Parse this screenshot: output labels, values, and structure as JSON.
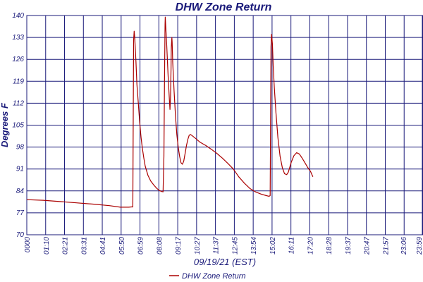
{
  "chart_data": {
    "type": "line",
    "title": "DHW Zone Return",
    "xlabel": "09/19/21 (EST)",
    "ylabel": "Degrees F",
    "ylim": [
      70,
      140
    ],
    "yticks": [
      70,
      77,
      84,
      91,
      98,
      105,
      112,
      119,
      126,
      133,
      140
    ],
    "xlim": [
      0,
      1439
    ],
    "xtick_labels": [
      "0000",
      "01:10",
      "02:21",
      "03:31",
      "04:41",
      "05:50",
      "06:59",
      "08:08",
      "09:17",
      "10:27",
      "11:37",
      "12:45",
      "13:54",
      "15:02",
      "16:11",
      "17:20",
      "18:28",
      "19:37",
      "20:47",
      "21:57",
      "23:06",
      "23:59"
    ],
    "grid": true,
    "legend_position": "bottom",
    "colors": {
      "series": "#aa0000",
      "grid": "#1a1a7a",
      "text": "#1a1a7a"
    },
    "series": [
      {
        "name": "DHW Zone Return",
        "points": [
          [
            0,
            81.2
          ],
          [
            60,
            81.0
          ],
          [
            120,
            80.6
          ],
          [
            180,
            80.2
          ],
          [
            240,
            79.8
          ],
          [
            300,
            79.3
          ],
          [
            340,
            78.8
          ],
          [
            370,
            78.8
          ],
          [
            380,
            78.9
          ],
          [
            385,
            78.9
          ],
          [
            388,
            132
          ],
          [
            390,
            135
          ],
          [
            392,
            133
          ],
          [
            396,
            126
          ],
          [
            400,
            118
          ],
          [
            405,
            112
          ],
          [
            410,
            106
          ],
          [
            415,
            101
          ],
          [
            420,
            97.5
          ],
          [
            425,
            94.5
          ],
          [
            430,
            92
          ],
          [
            440,
            89
          ],
          [
            450,
            87.2
          ],
          [
            460,
            86
          ],
          [
            470,
            85
          ],
          [
            480,
            84.2
          ],
          [
            490,
            83.8
          ],
          [
            495,
            83.7
          ],
          [
            498,
            95
          ],
          [
            500,
            118
          ],
          [
            502,
            137
          ],
          [
            503,
            139.5
          ],
          [
            505,
            136
          ],
          [
            508,
            131
          ],
          [
            510,
            127
          ],
          [
            513,
            121
          ],
          [
            515,
            118
          ],
          [
            518,
            113
          ],
          [
            520,
            110
          ],
          [
            522,
            114
          ],
          [
            524,
            123
          ],
          [
            525,
            130
          ],
          [
            527,
            133
          ],
          [
            528,
            131.5
          ],
          [
            530,
            125
          ],
          [
            535,
            116
          ],
          [
            540,
            108
          ],
          [
            545,
            102
          ],
          [
            550,
            98
          ],
          [
            555,
            95
          ],
          [
            560,
            93
          ],
          [
            565,
            92.5
          ],
          [
            570,
            93.5
          ],
          [
            575,
            96
          ],
          [
            580,
            98.5
          ],
          [
            585,
            100.5
          ],
          [
            590,
            101.8
          ],
          [
            595,
            102
          ],
          [
            610,
            101
          ],
          [
            630,
            99.5
          ],
          [
            650,
            98.5
          ],
          [
            670,
            97.3
          ],
          [
            690,
            96
          ],
          [
            710,
            94.5
          ],
          [
            730,
            92.8
          ],
          [
            750,
            91
          ],
          [
            770,
            88.5
          ],
          [
            790,
            86.5
          ],
          [
            810,
            84.8
          ],
          [
            830,
            83.7
          ],
          [
            850,
            83
          ],
          [
            870,
            82.5
          ],
          [
            880,
            82.3
          ],
          [
            884,
            82.5
          ],
          [
            887,
            130
          ],
          [
            889,
            134
          ],
          [
            892,
            131
          ],
          [
            895,
            124
          ],
          [
            899,
            117
          ],
          [
            905,
            109
          ],
          [
            912,
            101
          ],
          [
            920,
            95
          ],
          [
            928,
            91.5
          ],
          [
            936,
            89.5
          ],
          [
            944,
            89.2
          ],
          [
            950,
            90
          ],
          [
            960,
            93
          ],
          [
            970,
            95.2
          ],
          [
            980,
            96.2
          ],
          [
            990,
            95.8
          ],
          [
            1000,
            94.5
          ],
          [
            1010,
            93
          ],
          [
            1020,
            91.5
          ],
          [
            1030,
            90.3
          ],
          [
            1039,
            88.5
          ]
        ]
      }
    ]
  }
}
